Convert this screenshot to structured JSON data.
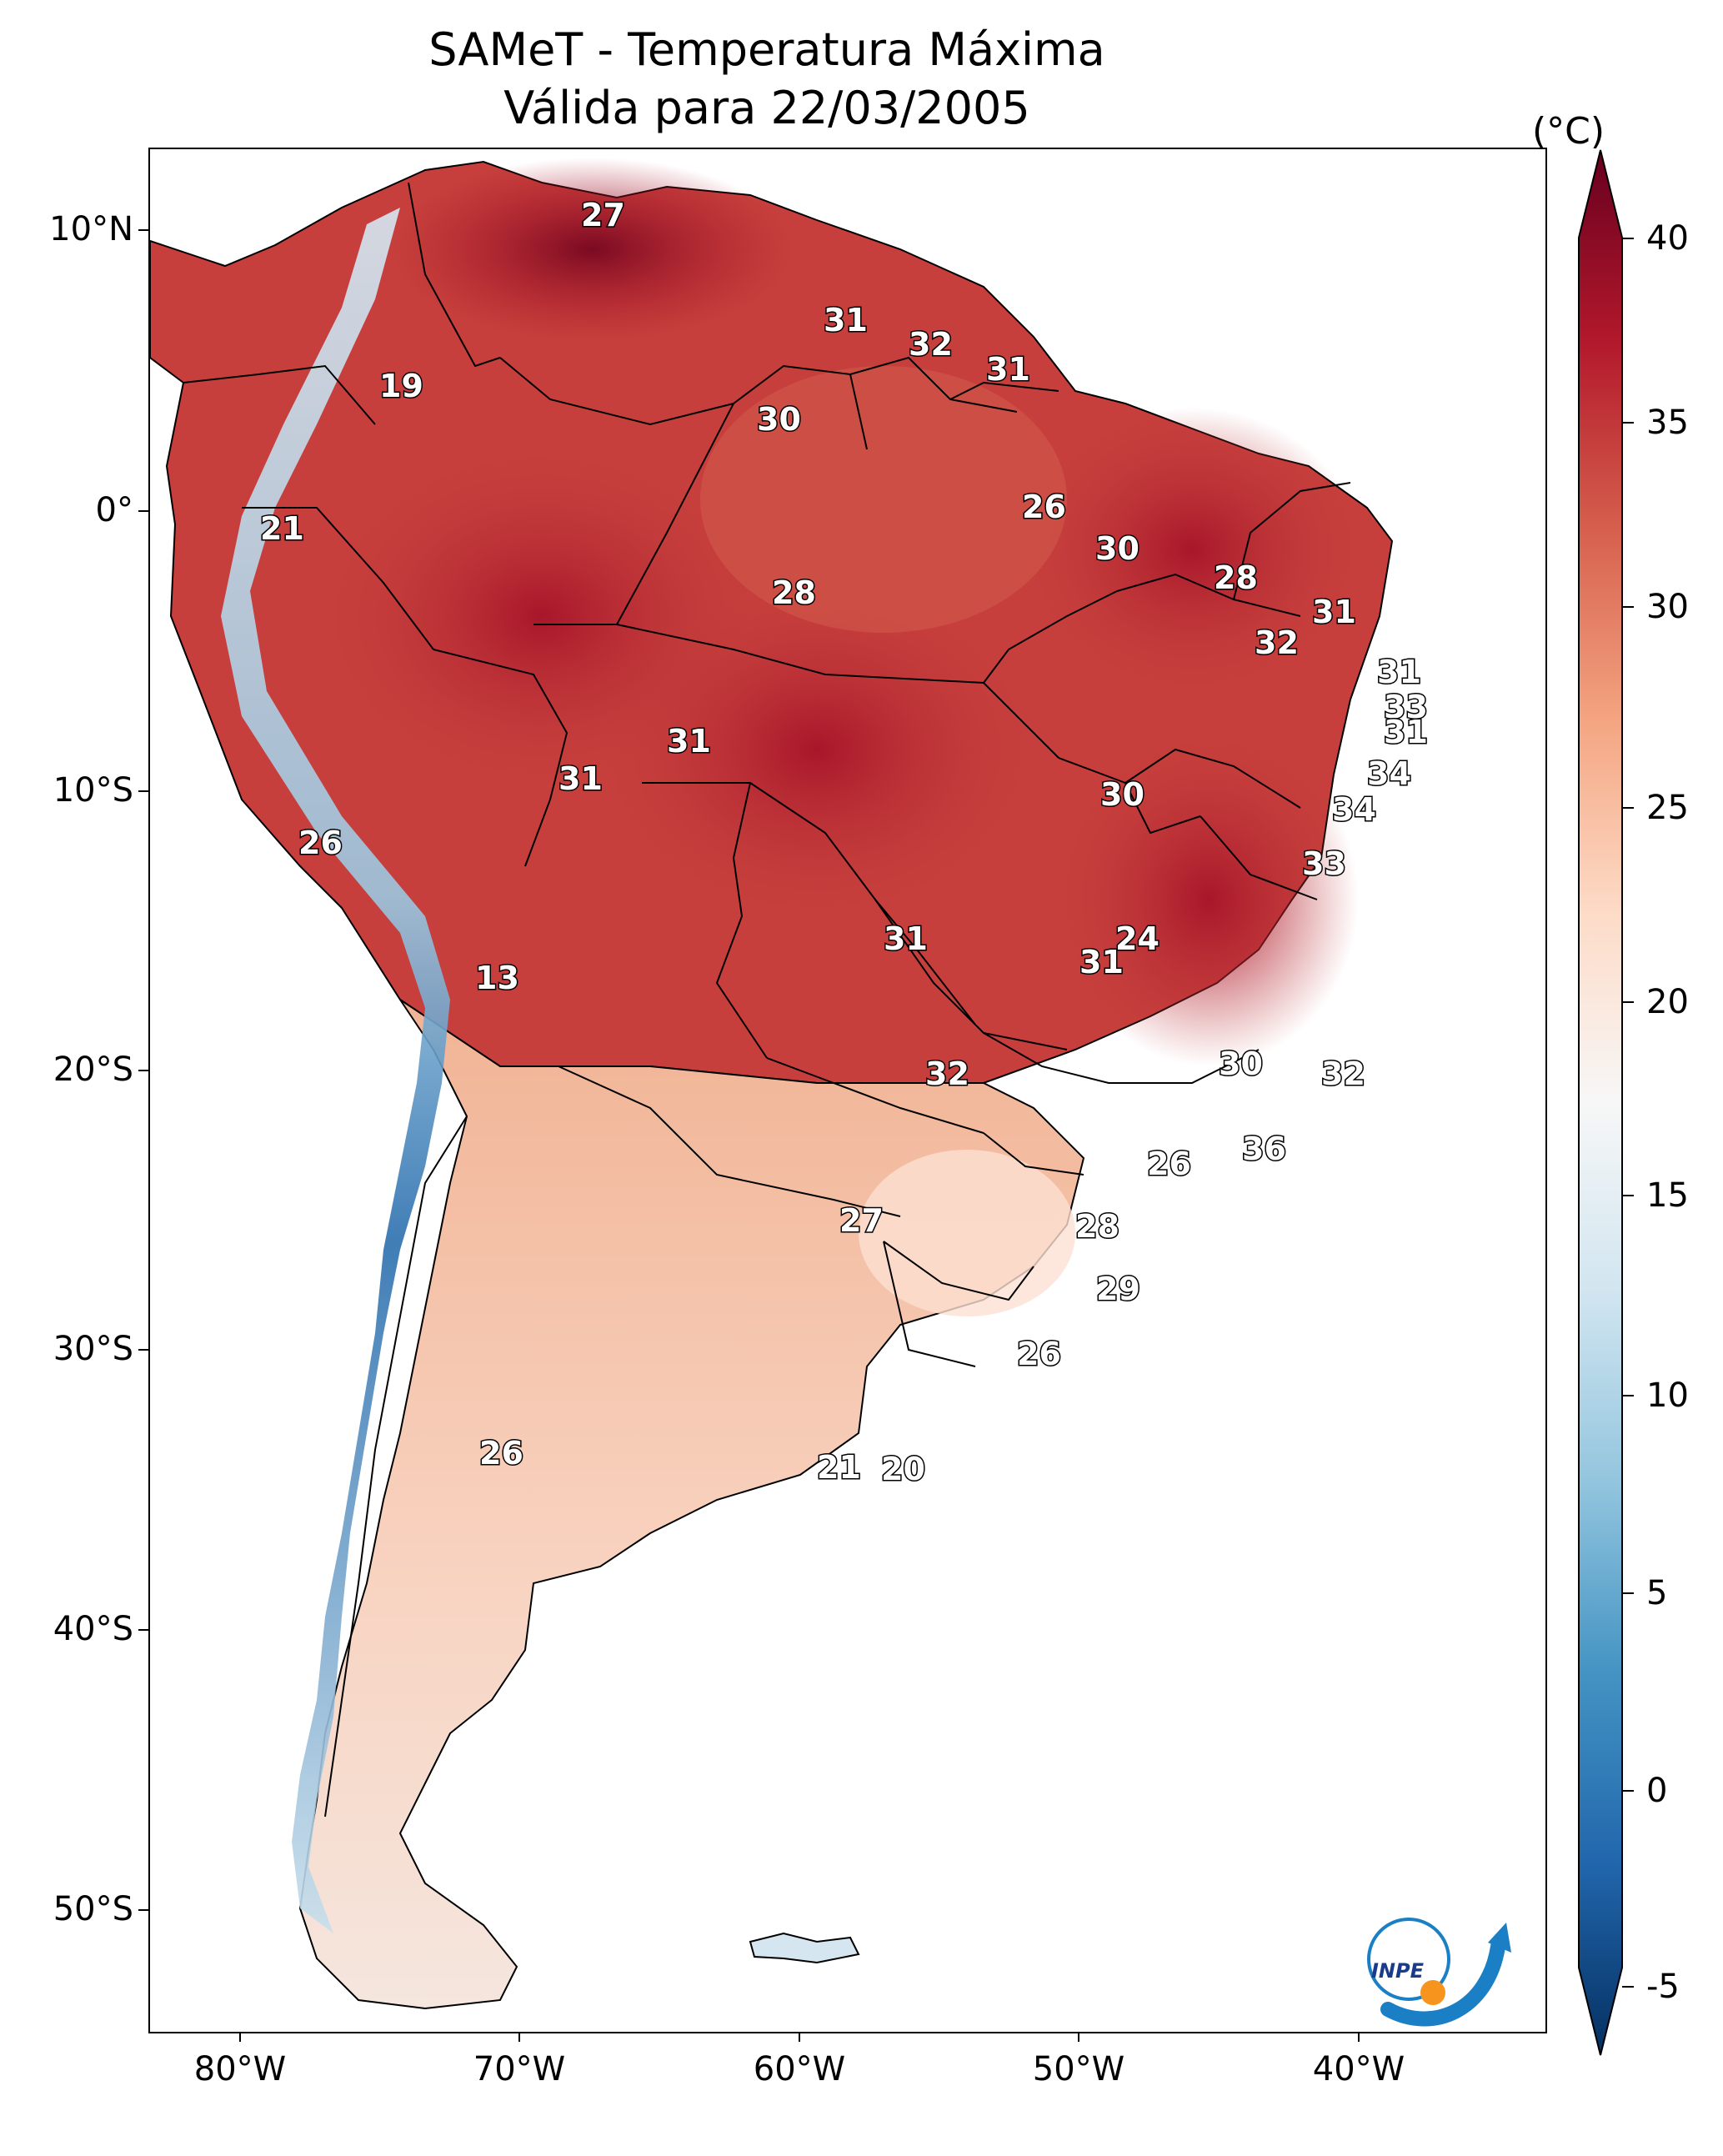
{
  "title_line1": "SAMeT - Temperatura Máxima",
  "title_line2": "Válida para 22/03/2005",
  "colorbar": {
    "unit": "(°C)",
    "ticks": [
      "40",
      "35",
      "30",
      "25",
      "20",
      "15",
      "10",
      "5",
      "0",
      "-5"
    ],
    "colors": [
      "#67001f",
      "#b2182b",
      "#d6604d",
      "#f4a582",
      "#fddbc7",
      "#f7f7f7",
      "#d1e5f0",
      "#92c5de",
      "#4393c3",
      "#2166ac",
      "#053061"
    ]
  },
  "axes": {
    "lat_labels": [
      "10°N",
      "0°",
      "10°S",
      "20°S",
      "30°S",
      "40°S",
      "50°S"
    ],
    "lon_labels": [
      "80°W",
      "70°W",
      "60°W",
      "50°W",
      "40°W"
    ]
  },
  "city_values": [
    "27",
    "19",
    "21",
    "26",
    "13",
    "26",
    "31",
    "31",
    "30",
    "31",
    "32",
    "31",
    "28",
    "26",
    "30",
    "28",
    "31",
    "32",
    "31",
    "33",
    "31",
    "34",
    "34",
    "33",
    "30",
    "24",
    "31",
    "31",
    "30",
    "32",
    "32",
    "36",
    "26",
    "28",
    "27",
    "29",
    "26",
    "21",
    "20"
  ],
  "logo": {
    "text": "INPE",
    "icon": "inpe-logo-icon"
  }
}
